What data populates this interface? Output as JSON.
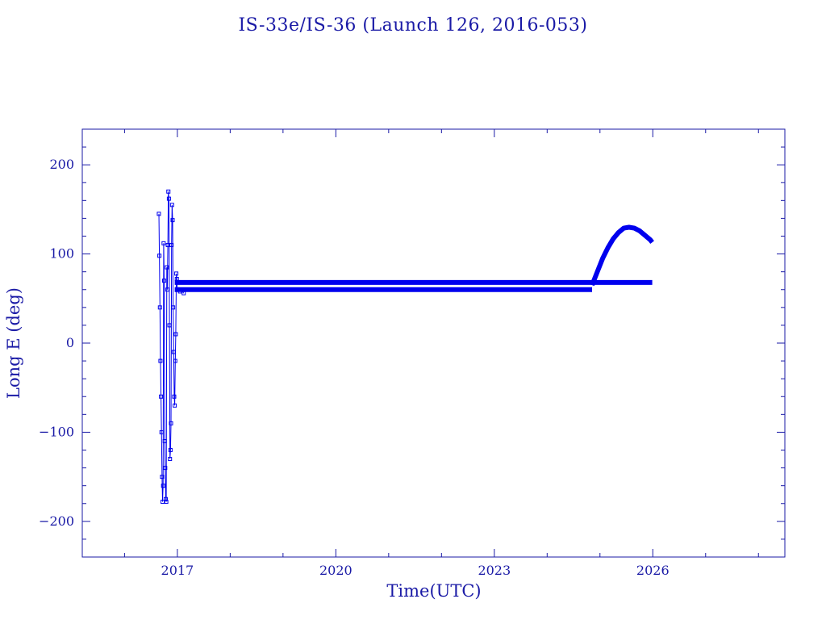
{
  "chart_data": {
    "type": "scatter",
    "title": "IS-33e/IS-36 (Launch 126, 2016-053)",
    "xlabel": "Time(UTC)",
    "ylabel": "Long E (deg)",
    "xlim": [
      2015.2,
      2028.5
    ],
    "ylim": [
      -240,
      240
    ],
    "xticks": [
      {
        "value": 2017,
        "label": "2017"
      },
      {
        "value": 2020,
        "label": "2020"
      },
      {
        "value": 2023,
        "label": "2023"
      },
      {
        "value": 2026,
        "label": "2026"
      }
    ],
    "yticks": [
      {
        "value": -200,
        "label": "−200"
      },
      {
        "value": -100,
        "label": "−100"
      },
      {
        "value": 0,
        "label": "0"
      },
      {
        "value": 100,
        "label": "100"
      },
      {
        "value": 200,
        "label": "200"
      }
    ],
    "grid": false,
    "color": "#0000ee",
    "series": [
      {
        "style": "markers-line",
        "x": [
          2016.65,
          2016.66,
          2016.67,
          2016.68,
          2016.69,
          2016.7,
          2016.71,
          2016.72,
          2016.73,
          2016.74,
          2016.75,
          2016.76,
          2016.77,
          2016.78,
          2016.79,
          2016.8,
          2016.81,
          2016.82,
          2016.83,
          2016.84,
          2016.85,
          2016.86,
          2016.87,
          2016.88,
          2016.89,
          2016.9,
          2016.91,
          2016.92,
          2016.93,
          2016.94,
          2016.95,
          2016.96,
          2016.97,
          2016.98,
          2016.99,
          2017.0,
          2017.02,
          2017.05,
          2017.08,
          2017.12
        ],
        "y": [
          145,
          98,
          40,
          -20,
          -60,
          -100,
          -150,
          -178,
          -160,
          112,
          70,
          -110,
          -140,
          -175,
          -178,
          85,
          60,
          110,
          170,
          162,
          20,
          -130,
          -120,
          -90,
          110,
          155,
          138,
          40,
          -10,
          -60,
          -70,
          -20,
          10,
          78,
          72,
          60,
          60,
          58,
          60,
          56
        ]
      },
      {
        "style": "thick-line",
        "x": [
          2016.95,
          2017.0,
          2018.0,
          2019.0,
          2020.0,
          2021.0,
          2022.0,
          2023.0,
          2024.0,
          2024.85
        ],
        "y": [
          60,
          60,
          60,
          60,
          60,
          60,
          60,
          60,
          60,
          60
        ]
      },
      {
        "style": "thick-line",
        "x": [
          2016.95,
          2017.0,
          2018.0,
          2019.0,
          2020.0,
          2021.0,
          2022.0,
          2023.0,
          2024.0,
          2025.0,
          2025.99
        ],
        "y": [
          68,
          68,
          68,
          68,
          68,
          68,
          68,
          68,
          68,
          68,
          68
        ]
      },
      {
        "style": "thick-line",
        "x": [
          2024.85,
          2024.95,
          2025.05,
          2025.15,
          2025.25,
          2025.35,
          2025.45,
          2025.55,
          2025.65,
          2025.75,
          2025.85,
          2025.95,
          2025.99
        ],
        "y": [
          65,
          80,
          95,
          107,
          117,
          124,
          129,
          130,
          129,
          126,
          121,
          116,
          113
        ]
      }
    ]
  }
}
